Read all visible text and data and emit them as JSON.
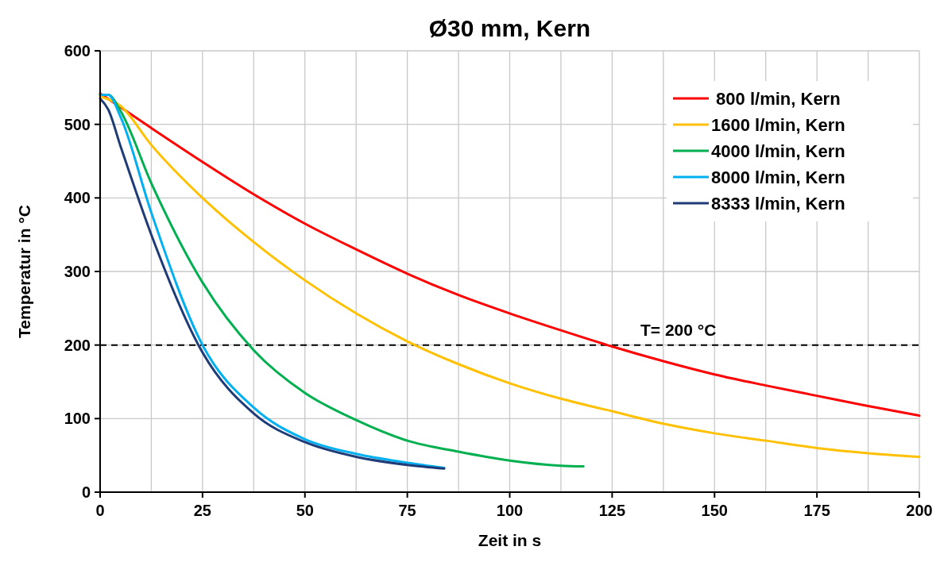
{
  "chart_data": {
    "type": "line",
    "title": "Ø30 mm, Kern",
    "xlabel": "Zeit in s",
    "ylabel": "Temperatur in °C",
    "xlim": [
      0,
      200
    ],
    "ylim": [
      0,
      600
    ],
    "xticks": [
      0,
      {
        "value": 12.5,
        "label": null
      },
      25,
      {
        "value": 37.5,
        "label": null
      },
      50,
      {
        "value": 62.5,
        "label": null
      },
      75,
      {
        "value": 87.5,
        "label": null
      },
      100,
      {
        "value": 112.5,
        "label": null
      },
      125,
      {
        "value": 137.5,
        "label": null
      },
      150,
      {
        "value": 162.5,
        "label": null
      },
      175,
      {
        "value": 187.5,
        "label": null
      },
      200
    ],
    "yticks": [
      0,
      100,
      200,
      300,
      400,
      500,
      600
    ],
    "grid": true,
    "legend": "top right",
    "line_style": "solid",
    "marker": "none",
    "ref_lines": [
      {
        "axis": "y",
        "value": 200,
        "label": "T= 200 °C",
        "color": "#000000",
        "line_style": "dashed"
      }
    ],
    "series": [
      {
        "name": " 800 l/min, Kern",
        "color": "#ff0000",
        "x": [
          0,
          12.5,
          25,
          37.5,
          50,
          62.5,
          75,
          87.5,
          100,
          112.5,
          125,
          137.5,
          150,
          162.5,
          175,
          187.5,
          200
        ],
        "values": [
          542,
          495,
          449,
          405,
          365,
          330,
          297,
          268,
          243,
          220,
          198,
          178,
          160,
          145,
          131,
          117,
          104
        ]
      },
      {
        "name": "1600 l/min, Kern",
        "color": "#ffc000",
        "x": [
          0,
          5,
          12.5,
          25,
          37.5,
          50,
          62.5,
          75,
          87.5,
          100,
          112.5,
          125,
          137.5,
          150,
          162.5,
          175,
          187.5,
          200
        ],
        "values": [
          538,
          525,
          472,
          400,
          340,
          288,
          243,
          205,
          174,
          148,
          127,
          110,
          93,
          80,
          70,
          60,
          53,
          48
        ]
      },
      {
        "name": "4000 l/min, Kern",
        "color": "#00b050",
        "x": [
          0,
          2,
          5,
          12.5,
          25,
          37.5,
          50,
          62.5,
          75,
          87.5,
          100,
          112.5,
          118
        ],
        "values": [
          540,
          540,
          518,
          420,
          285,
          193,
          135,
          98,
          70,
          55,
          43,
          36,
          35
        ]
      },
      {
        "name": "8000 l/min, Kern",
        "color": "#00b0f0",
        "x": [
          0,
          2,
          5,
          12.5,
          25,
          37.5,
          50,
          62.5,
          75,
          84
        ],
        "values": [
          540,
          540,
          510,
          380,
          200,
          115,
          72,
          52,
          40,
          33
        ]
      },
      {
        "name": "8333 l/min, Kern",
        "color": "#1f3c78",
        "x": [
          0,
          2,
          5,
          12.5,
          25,
          37.5,
          50,
          62.5,
          75,
          84
        ],
        "values": [
          535,
          520,
          470,
          350,
          190,
          107,
          68,
          48,
          37,
          32
        ]
      }
    ]
  }
}
